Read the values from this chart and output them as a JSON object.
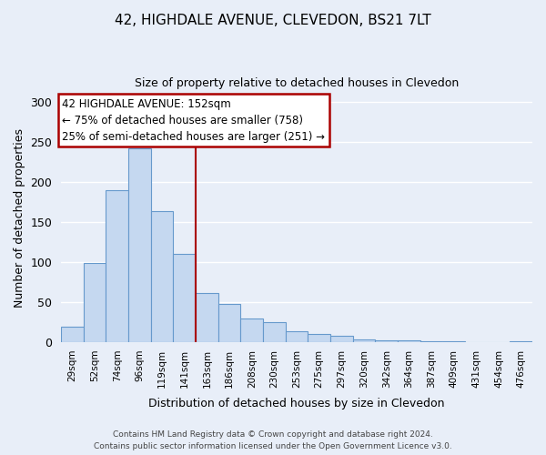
{
  "title": "42, HIGHDALE AVENUE, CLEVEDON, BS21 7LT",
  "subtitle": "Size of property relative to detached houses in Clevedon",
  "xlabel": "Distribution of detached houses by size in Clevedon",
  "ylabel": "Number of detached properties",
  "bar_labels": [
    "29sqm",
    "52sqm",
    "74sqm",
    "96sqm",
    "119sqm",
    "141sqm",
    "163sqm",
    "186sqm",
    "208sqm",
    "230sqm",
    "253sqm",
    "275sqm",
    "297sqm",
    "320sqm",
    "342sqm",
    "364sqm",
    "387sqm",
    "409sqm",
    "431sqm",
    "454sqm",
    "476sqm"
  ],
  "bar_values": [
    20,
    99,
    190,
    242,
    164,
    110,
    62,
    48,
    30,
    25,
    14,
    10,
    8,
    4,
    2,
    2,
    1,
    1,
    0,
    0,
    1
  ],
  "bar_color": "#c5d8f0",
  "bar_edge_color": "#6699cc",
  "ylim": [
    0,
    310
  ],
  "yticks": [
    0,
    50,
    100,
    150,
    200,
    250,
    300
  ],
  "vline_x": 5.5,
  "vline_color": "#aa0000",
  "annotation_title": "42 HIGHDALE AVENUE: 152sqm",
  "annotation_line1": "← 75% of detached houses are smaller (758)",
  "annotation_line2": "25% of semi-detached houses are larger (251) →",
  "annotation_box_facecolor": "#ffffff",
  "annotation_box_edgecolor": "#aa0000",
  "footer1": "Contains HM Land Registry data © Crown copyright and database right 2024.",
  "footer2": "Contains public sector information licensed under the Open Government Licence v3.0.",
  "background_color": "#e8eef8",
  "plot_background": "#e8eef8",
  "grid_color": "#ffffff",
  "title_fontsize": 11,
  "subtitle_fontsize": 9,
  "ylabel_fontsize": 9,
  "xlabel_fontsize": 9,
  "tick_fontsize": 7.5,
  "ann_fontsize": 8.5,
  "footer_fontsize": 6.5
}
